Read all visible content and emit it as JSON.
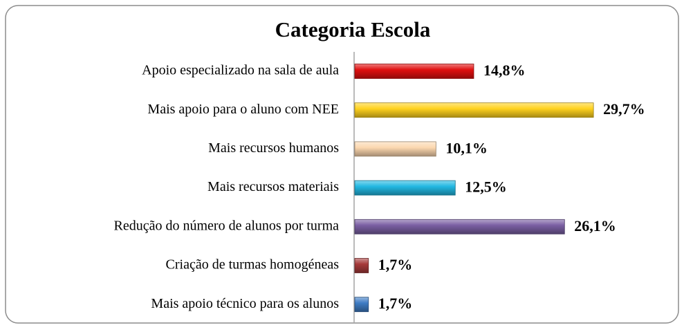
{
  "chart_data": {
    "type": "bar",
    "orientation": "horizontal",
    "title": "Categoria Escola",
    "categories": [
      "Apoio especializado na sala de aula",
      "Mais  apoio para o aluno com NEE",
      "Mais recursos humanos",
      "Mais recursos materiais",
      "Redução do número de alunos por turma",
      "Criação de turmas homogéneas",
      "Mais apoio técnico para os alunos"
    ],
    "values": [
      14.8,
      29.7,
      10.1,
      12.5,
      26.1,
      1.7,
      1.7
    ],
    "value_labels": [
      "14,8%",
      "29,7%",
      "10,1%",
      "12,5%",
      "26,1%",
      "1,7%",
      "1,7%"
    ],
    "colors": [
      "#e01010",
      "#ffd21f",
      "#fcd8b0",
      "#22b8e2",
      "#7a5fa3",
      "#a63a3a",
      "#3f7cc4"
    ]
  }
}
